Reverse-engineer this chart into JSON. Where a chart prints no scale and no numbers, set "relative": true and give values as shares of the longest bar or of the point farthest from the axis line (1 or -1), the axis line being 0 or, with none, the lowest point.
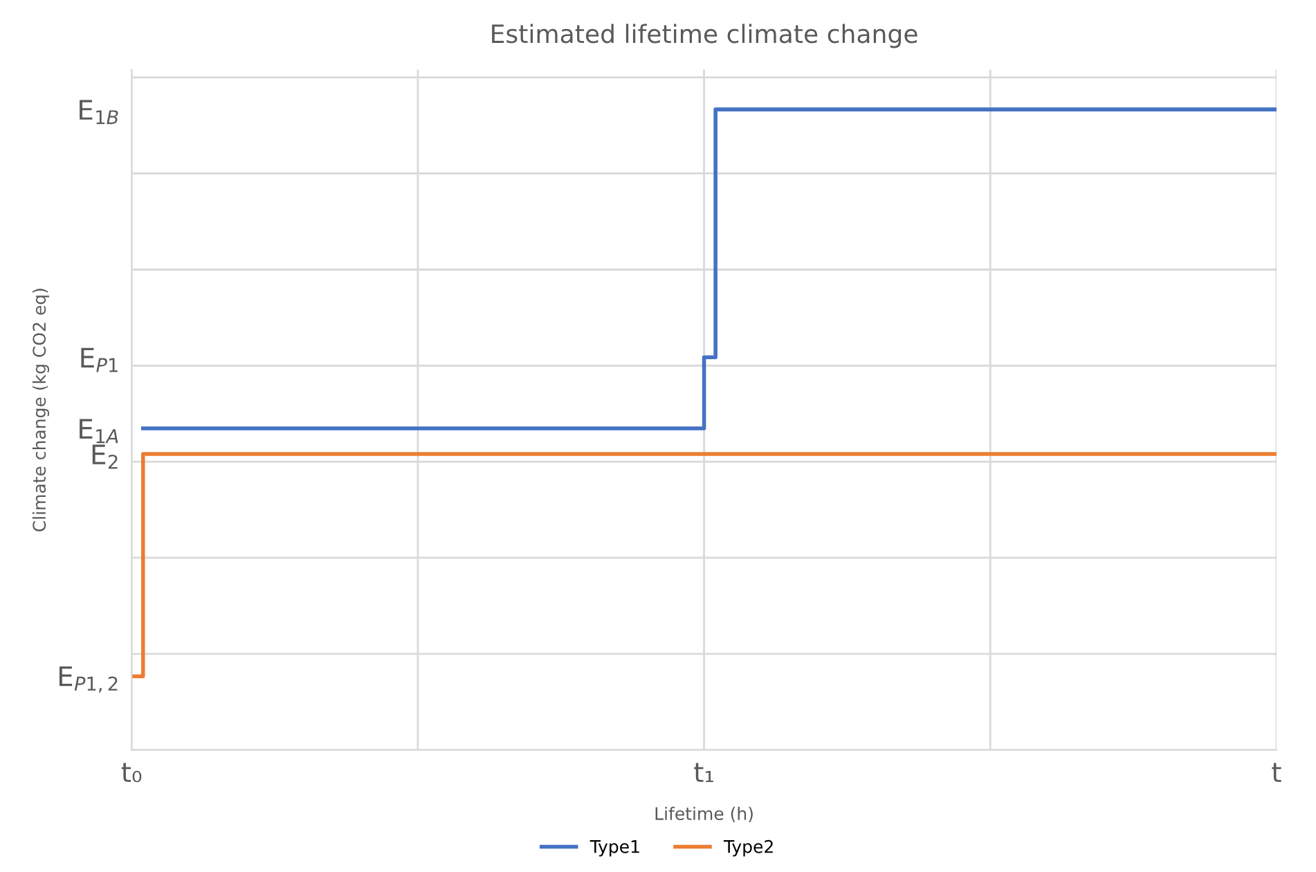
{
  "chart_data": {
    "type": "step",
    "title": "Estimated lifetime climate change",
    "xlabel": "Lifetime (h)",
    "ylabel": "Climate change (kg CO2 eq)",
    "relative": true,
    "grid": true,
    "legend": "bottom",
    "categories": [
      "t₀",
      null,
      null,
      null,
      null,
      null,
      null,
      null,
      null,
      null,
      null,
      null,
      null,
      null,
      null,
      null,
      null,
      null,
      null,
      null,
      null,
      null,
      null,
      null,
      null,
      null,
      null,
      null,
      null,
      null,
      null,
      null,
      null,
      null,
      null,
      null,
      null,
      null,
      null,
      null,
      null,
      null,
      null,
      null,
      null,
      null,
      null,
      null,
      null,
      null,
      "t₁",
      null,
      null,
      null,
      null,
      null,
      null,
      null,
      null,
      null,
      null,
      null,
      null,
      null,
      null,
      null,
      null,
      null,
      null,
      null,
      null,
      null,
      null,
      null,
      null,
      null,
      null,
      null,
      null,
      null,
      null,
      null,
      null,
      null,
      null,
      null,
      null,
      null,
      null,
      null,
      null,
      null,
      null,
      null,
      null,
      null,
      null,
      null,
      null,
      null,
      "t"
    ],
    "annotations": [
      "E$_{P1,2}$",
      "E$_{2}$",
      "E$_{1A}$",
      "E$_{P1}$",
      "E$_{1B}$"
    ],
    "series": [
      {
        "name": "Type1",
        "color": "#4472c4",
        "values": [
          null,
          0.502,
          0.502,
          0.502,
          0.502,
          0.502,
          0.502,
          0.502,
          0.502,
          0.502,
          0.502,
          0.502,
          0.502,
          0.502,
          0.502,
          0.502,
          0.502,
          0.502,
          0.502,
          0.502,
          0.502,
          0.502,
          0.502,
          0.502,
          0.502,
          0.502,
          0.502,
          0.502,
          0.502,
          0.502,
          0.502,
          0.502,
          0.502,
          0.502,
          0.502,
          0.502,
          0.502,
          0.502,
          0.502,
          0.502,
          0.502,
          0.502,
          0.502,
          0.502,
          0.502,
          0.502,
          0.502,
          0.502,
          0.502,
          0.502,
          0.613,
          1,
          1,
          1,
          1,
          1,
          1,
          1,
          1,
          1,
          1,
          1,
          1,
          1,
          1,
          1,
          1,
          1,
          1,
          1,
          1,
          1,
          1,
          1,
          1,
          1,
          1,
          1,
          1,
          1,
          1,
          1,
          1,
          1,
          1,
          1,
          1,
          1,
          1,
          1,
          1,
          1,
          1,
          1,
          1,
          1,
          1,
          1,
          1,
          1,
          1
        ]
      },
      {
        "name": "Type2",
        "color": "#ed7d31",
        "values": [
          0.115,
          0.462,
          0.462,
          0.462,
          0.462,
          0.462,
          0.462,
          0.462,
          0.462,
          0.462,
          0.462,
          0.462,
          0.462,
          0.462,
          0.462,
          0.462,
          0.462,
          0.462,
          0.462,
          0.462,
          0.462,
          0.462,
          0.462,
          0.462,
          0.462,
          0.462,
          0.462,
          0.462,
          0.462,
          0.462,
          0.462,
          0.462,
          0.462,
          0.462,
          0.462,
          0.462,
          0.462,
          0.462,
          0.462,
          0.462,
          0.462,
          0.462,
          0.462,
          0.462,
          0.462,
          0.462,
          0.462,
          0.462,
          0.462,
          0.462,
          0.462,
          0.462,
          0.462,
          0.462,
          0.462,
          0.462,
          0.462,
          0.462,
          0.462,
          0.462,
          0.462,
          0.462,
          0.462,
          0.462,
          0.462,
          0.462,
          0.462,
          0.462,
          0.462,
          0.462,
          0.462,
          0.462,
          0.462,
          0.462,
          0.462,
          0.462,
          0.462,
          0.462,
          0.462,
          0.462,
          0.462,
          0.462,
          0.462,
          0.462,
          0.462,
          0.462,
          0.462,
          0.462,
          0.462,
          0.462,
          0.462,
          0.462,
          0.462,
          0.462,
          0.462,
          0.462,
          0.462,
          0.462,
          0.462,
          0.462,
          0.462
        ]
      }
    ]
  }
}
